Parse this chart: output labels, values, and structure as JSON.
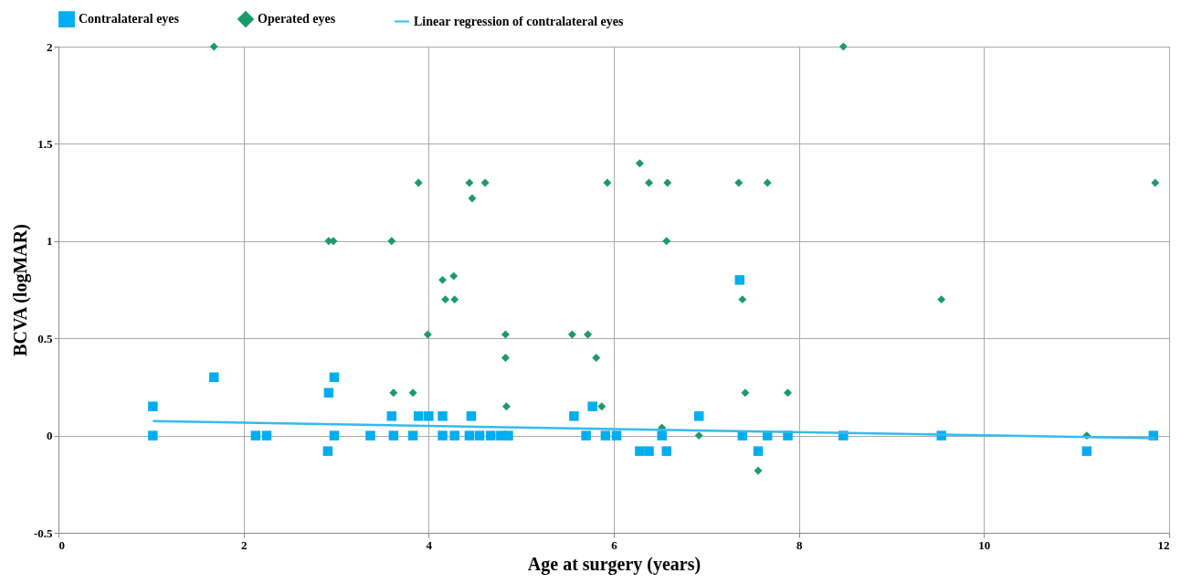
{
  "chart_data": {
    "type": "scatter",
    "xlabel": "Age at surgery (years)",
    "ylabel": "BCVA (logMAR)",
    "xlim": [
      0,
      12
    ],
    "xticks": [
      0,
      2,
      4,
      6,
      8,
      10,
      12
    ],
    "ylim": [
      -0.5,
      2
    ],
    "yticks": [
      -0.5,
      0,
      0.5,
      1,
      1.5,
      2
    ],
    "grid": true,
    "legend": "top",
    "series": [
      {
        "name": "Contralateral eyes",
        "type": "scatter",
        "marker": "square",
        "color": "#00aeef",
        "x": [
          1.02,
          1.02,
          1.68,
          2.13,
          2.25,
          2.92,
          2.98,
          2.91,
          2.98,
          3.37,
          3.6,
          3.62,
          3.83,
          3.89,
          4.0,
          4.15,
          4.15,
          4.28,
          4.46,
          4.44,
          4.55,
          4.67,
          4.78,
          4.86,
          5.57,
          5.7,
          5.77,
          5.91,
          6.03,
          6.28,
          6.38,
          6.57,
          6.52,
          6.92,
          7.36,
          7.39,
          7.56,
          7.66,
          7.88,
          8.48,
          9.54,
          11.11,
          11.83
        ],
        "values": [
          0.15,
          0,
          0.3,
          0,
          0,
          0.22,
          0.3,
          -0.08,
          0,
          0,
          0.1,
          0,
          0,
          0.1,
          0.1,
          0.1,
          0,
          0,
          0.1,
          0,
          0,
          0,
          0,
          0,
          0.1,
          0,
          0.15,
          0,
          0,
          -0.08,
          -0.08,
          -0.08,
          0,
          0.1,
          0.8,
          0,
          -0.08,
          0,
          0,
          0,
          0,
          -0.08,
          0
        ]
      },
      {
        "name": "Operated eyes",
        "type": "scatter",
        "marker": "diamond",
        "color": "#1a9b6c",
        "x": [
          1.68,
          3.89,
          4.44,
          4.61,
          4.47,
          5.93,
          2.92,
          2.97,
          3.6,
          4.15,
          4.27,
          4.18,
          4.28,
          3.99,
          4.83,
          5.55,
          5.72,
          4.83,
          5.81,
          3.62,
          3.83,
          4.84,
          5.87,
          8.48,
          6.28,
          6.38,
          6.58,
          7.35,
          7.66,
          11.85,
          6.57,
          7.39,
          9.54,
          7.42,
          7.88,
          6.52,
          6.92,
          11.11,
          7.56
        ],
        "values": [
          2,
          1.3,
          1.3,
          1.3,
          1.22,
          1.3,
          1,
          1,
          1,
          0.8,
          0.82,
          0.7,
          0.7,
          0.52,
          0.52,
          0.52,
          0.52,
          0.4,
          0.4,
          0.22,
          0.22,
          0.15,
          0.15,
          2,
          1.4,
          1.3,
          1.3,
          1.3,
          1.3,
          1.3,
          1,
          0.7,
          0.7,
          0.22,
          0.22,
          0.04,
          0,
          0,
          -0.18
        ]
      },
      {
        "name": "Linear regression of contralateral eyes",
        "type": "line",
        "marker": "none",
        "line_style": "solid",
        "color": "#33bbee",
        "x": [
          1.02,
          11.85
        ],
        "values": [
          0.074,
          -0.014
        ]
      }
    ]
  }
}
